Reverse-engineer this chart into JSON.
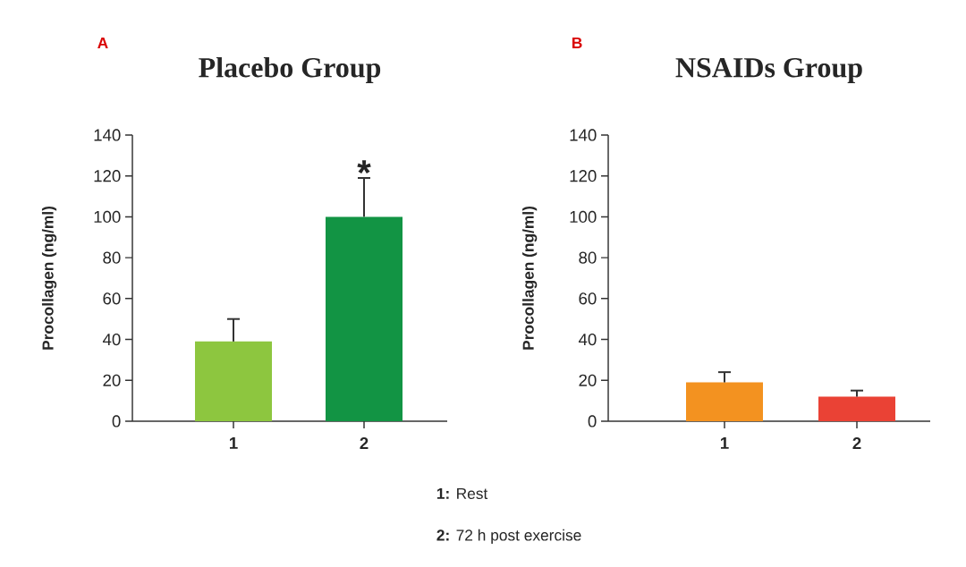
{
  "chart_data": [
    {
      "type": "bar",
      "title": "Placebo Group",
      "ylabel": "Procollagen (ng/ml)",
      "categories": [
        "1",
        "2"
      ],
      "values": [
        39,
        100
      ],
      "colors": [
        "#8dc63f",
        "#129444"
      ],
      "errors": [
        11,
        19
      ],
      "ylim": [
        0,
        140
      ],
      "yticks": [
        0,
        20,
        40,
        60,
        80,
        100,
        120,
        140
      ],
      "annotations": [
        "A",
        {
          "text": "*",
          "x": "2",
          "y": 119
        },
        "**1:** Rest",
        "**2:** 72 h post exercise"
      ]
    },
    {
      "type": "bar",
      "title": "NSAIDs Group",
      "ylabel": "Procollagen (ng/ml)",
      "categories": [
        "1",
        "2"
      ],
      "values": [
        19,
        12
      ],
      "colors": [
        "#f39220",
        "#ea4235"
      ],
      "errors": [
        5,
        3
      ],
      "ylim": [
        0,
        140
      ],
      "yticks": [
        0,
        20,
        40,
        60,
        80,
        100,
        120,
        140
      ],
      "annotations": [
        "B"
      ]
    }
  ]
}
